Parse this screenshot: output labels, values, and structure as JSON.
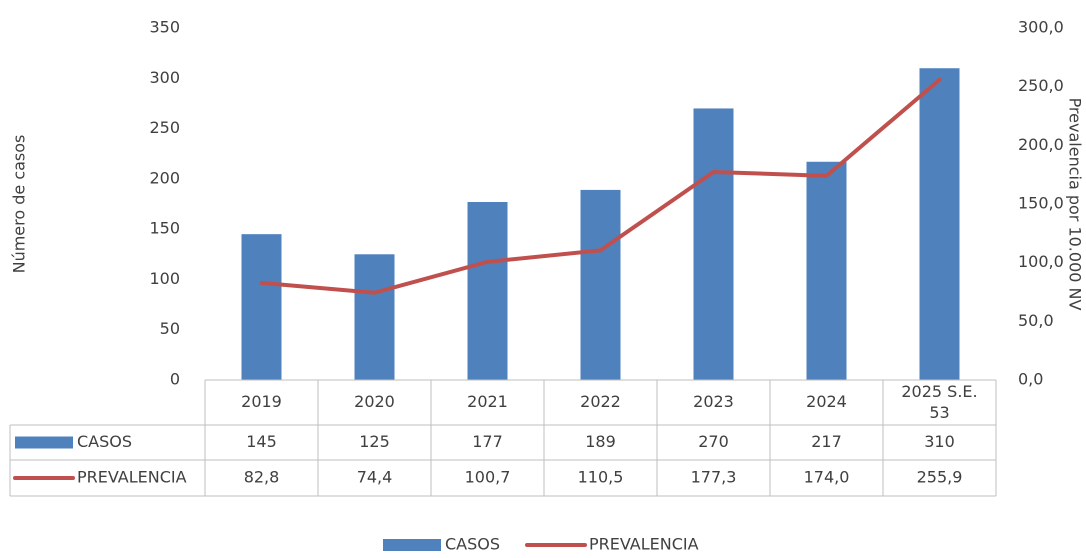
{
  "chart_data": {
    "type": "bar_line",
    "y_label": "Número de casos",
    "y2_label": "Prevalencia por 10.000 NV",
    "categories": [
      "2019",
      "2020",
      "2021",
      "2022",
      "2023",
      "2024",
      "2025 S.E. 53"
    ],
    "series": [
      {
        "name": "CASOS",
        "type": "bar",
        "color": "#4f81bd",
        "values": [
          145,
          125,
          177,
          189,
          270,
          217,
          310
        ]
      },
      {
        "name": "PREVALENCIA",
        "type": "line",
        "axis": "y2",
        "color": "#c0504d",
        "values": [
          82.8,
          74.4,
          100.7,
          110.5,
          177.3,
          174.0,
          255.9
        ],
        "value_labels": [
          "82,8",
          "74,4",
          "100,7",
          "110,5",
          "177,3",
          "174,0",
          "255,9"
        ]
      }
    ],
    "ylim": [
      0,
      350
    ],
    "yticks": [
      0,
      50,
      100,
      150,
      200,
      250,
      300,
      350
    ],
    "y2lim": [
      0,
      300
    ],
    "y2ticks": [
      {
        "value": 0,
        "label": "0,0"
      },
      {
        "value": 50,
        "label": "50,0"
      },
      {
        "value": 100,
        "label": "100,0"
      },
      {
        "value": 150,
        "label": "150,0"
      },
      {
        "value": 200,
        "label": "200,0"
      },
      {
        "value": 250,
        "label": "250,0"
      },
      {
        "value": 300,
        "label": "300,0"
      }
    ],
    "legend": "bottom",
    "data_table": true
  }
}
